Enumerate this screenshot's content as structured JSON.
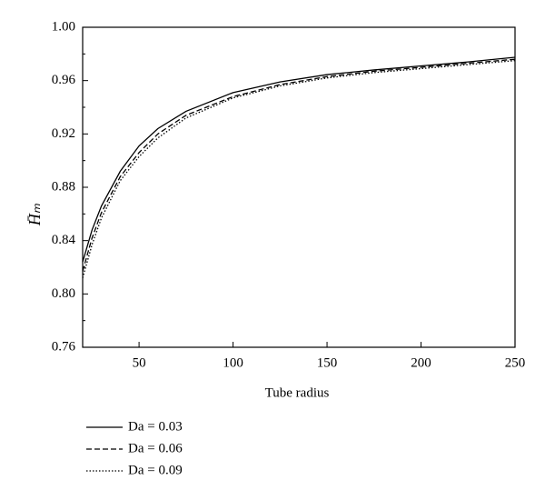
{
  "chart_data": {
    "type": "line",
    "x_label": "Tube radius",
    "y_label": "H̄ₘ",
    "x": [
      20,
      25,
      30,
      40,
      50,
      60,
      75,
      100,
      125,
      150,
      175,
      200,
      225,
      250
    ],
    "series": [
      {
        "name": "Da = 0.03",
        "color": "#000000",
        "dash": "solid",
        "values": [
          0.824,
          0.848,
          0.866,
          0.892,
          0.911,
          0.924,
          0.937,
          0.951,
          0.959,
          0.9645,
          0.968,
          0.971,
          0.974,
          0.9775
        ]
      },
      {
        "name": "Da = 0.06",
        "color": "#000000",
        "dash": "dashed",
        "values": [
          0.817,
          0.842,
          0.861,
          0.888,
          0.906,
          0.92,
          0.934,
          0.948,
          0.957,
          0.963,
          0.967,
          0.97,
          0.973,
          0.976
        ]
      },
      {
        "name": "Da = 0.09",
        "color": "#000000",
        "dash": "dotted",
        "values": [
          0.812,
          0.837,
          0.857,
          0.885,
          0.903,
          0.917,
          0.932,
          0.947,
          0.956,
          0.962,
          0.966,
          0.969,
          0.972,
          0.975
        ]
      }
    ],
    "xlim": [
      20,
      250
    ],
    "ylim": [
      0.76,
      1.0
    ],
    "xticks": [
      50,
      100,
      150,
      200,
      250
    ],
    "yticks": [
      0.76,
      {
        "value": 0.8,
        "label": "0.80"
      },
      0.84,
      0.88,
      0.92,
      0.96,
      {
        "value": 1.0,
        "label": "1.00"
      }
    ],
    "legend": "bottom-left"
  }
}
